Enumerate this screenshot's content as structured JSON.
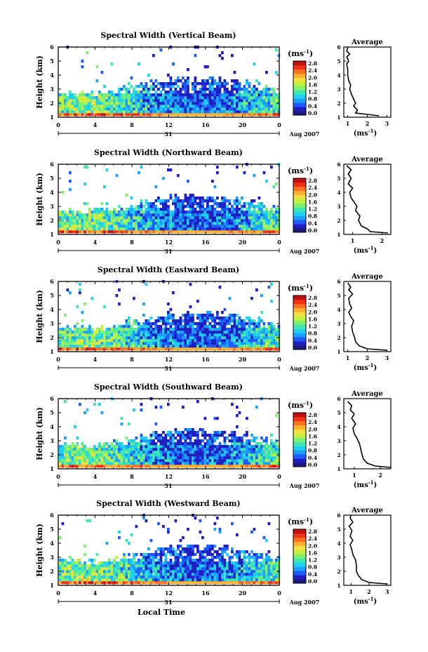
{
  "figure": {
    "xlabel": "Local Time",
    "date_label": "31",
    "month_year": "Aug 2007",
    "avg_title": "Average",
    "unit_label": "(ms",
    "unit_sup": "-1",
    "unit_close": ")",
    "ylabel": "Height (km)"
  },
  "palette": [
    "#1a1a80",
    "#2020c0",
    "#1e5cff",
    "#1aa0ff",
    "#20d0f0",
    "#40e8b0",
    "#80f070",
    "#c0f040",
    "#f0e040",
    "#ffb030",
    "#ff7020",
    "#f03018",
    "#c01010"
  ],
  "chart_data": [
    {
      "type": "heatmap",
      "title": "Spectral Width (Vertical Beam)",
      "x_ticks": [
        "0",
        "4",
        "8",
        "12",
        "16",
        "20",
        "0"
      ],
      "y_ticks": [
        "1",
        "2",
        "3",
        "4",
        "5",
        "6"
      ],
      "xlim": [
        0,
        24
      ],
      "ylim": [
        1,
        6
      ],
      "colorbar": {
        "ticks": [
          "0.0",
          "0.4",
          "0.8",
          "1.2",
          "1.6",
          "2.0",
          "2.4",
          "2.8"
        ],
        "range": [
          0,
          2.8
        ]
      },
      "profile": {
        "x_ticks": [
          "1",
          "2",
          "3"
        ],
        "xlim": [
          0.8,
          3.2
        ],
        "ylim": [
          1,
          6
        ],
        "points": [
          [
            2.6,
            1.1
          ],
          [
            2.0,
            1.2
          ],
          [
            1.4,
            1.3
          ],
          [
            1.5,
            1.5
          ],
          [
            1.3,
            1.8
          ],
          [
            1.4,
            2.0
          ],
          [
            1.3,
            2.3
          ],
          [
            1.2,
            2.6
          ],
          [
            1.1,
            3.0
          ],
          [
            1.15,
            3.3
          ],
          [
            1.05,
            3.6
          ],
          [
            1.0,
            4.0
          ],
          [
            1.0,
            4.4
          ],
          [
            0.95,
            4.8
          ],
          [
            1.05,
            5.0
          ],
          [
            0.95,
            5.3
          ],
          [
            1.1,
            5.5
          ],
          [
            0.95,
            5.7
          ],
          [
            1.0,
            6.0
          ]
        ]
      }
    },
    {
      "type": "heatmap",
      "title": "Spectral Width (Northward Beam)",
      "x_ticks": [
        "0",
        "4",
        "8",
        "12",
        "16",
        "20",
        "0"
      ],
      "y_ticks": [
        "1",
        "2",
        "3",
        "4",
        "5",
        "6"
      ],
      "xlim": [
        0,
        24
      ],
      "ylim": [
        1,
        6
      ],
      "colorbar": {
        "ticks": [
          "0.0",
          "0.4",
          "0.8",
          "1.2",
          "1.6",
          "2.0",
          "2.4",
          "2.8"
        ],
        "range": [
          0,
          2.8
        ]
      },
      "profile": {
        "x_ticks": [
          "1",
          "2"
        ],
        "xlim": [
          0.7,
          2.3
        ],
        "ylim": [
          1,
          6
        ],
        "points": [
          [
            2.2,
            1.1
          ],
          [
            1.6,
            1.2
          ],
          [
            1.5,
            1.4
          ],
          [
            1.3,
            1.6
          ],
          [
            1.2,
            2.0
          ],
          [
            1.25,
            2.3
          ],
          [
            1.1,
            2.7
          ],
          [
            1.15,
            3.0
          ],
          [
            1.05,
            3.3
          ],
          [
            0.95,
            3.6
          ],
          [
            0.9,
            4.0
          ],
          [
            1.0,
            4.3
          ],
          [
            0.85,
            4.6
          ],
          [
            0.95,
            5.0
          ],
          [
            0.85,
            5.3
          ],
          [
            0.95,
            5.6
          ],
          [
            0.8,
            5.9
          ]
        ]
      }
    },
    {
      "type": "heatmap",
      "title": "Spectral Width (Eastward Beam)",
      "x_ticks": [
        "0",
        "4",
        "8",
        "12",
        "16",
        "20",
        "0"
      ],
      "y_ticks": [
        "1",
        "2",
        "3",
        "4",
        "5",
        "6"
      ],
      "xlim": [
        0,
        24
      ],
      "ylim": [
        1,
        6
      ],
      "colorbar": {
        "ticks": [
          "0.0",
          "0.4",
          "0.8",
          "1.2",
          "1.6",
          "2.0",
          "2.4",
          "2.8"
        ],
        "range": [
          0,
          2.8
        ]
      },
      "profile": {
        "x_ticks": [
          "1",
          "2",
          "3"
        ],
        "xlim": [
          0.8,
          3.2
        ],
        "ylim": [
          1,
          6
        ],
        "points": [
          [
            3.0,
            1.1
          ],
          [
            2.0,
            1.2
          ],
          [
            1.6,
            1.4
          ],
          [
            1.4,
            1.7
          ],
          [
            1.35,
            2.0
          ],
          [
            1.25,
            2.4
          ],
          [
            1.2,
            2.8
          ],
          [
            1.3,
            3.2
          ],
          [
            1.15,
            3.5
          ],
          [
            1.05,
            3.8
          ],
          [
            1.2,
            4.1
          ],
          [
            1.1,
            4.4
          ],
          [
            1.05,
            4.8
          ],
          [
            1.25,
            5.1
          ],
          [
            1.05,
            5.4
          ],
          [
            1.15,
            5.6
          ],
          [
            1.0,
            5.9
          ]
        ]
      }
    },
    {
      "type": "heatmap",
      "title": "Spectral Width (Southward Beam)",
      "x_ticks": [
        "0",
        "4",
        "8",
        "12",
        "16",
        "20",
        "0"
      ],
      "y_ticks": [
        "1",
        "2",
        "3",
        "4",
        "5",
        "6"
      ],
      "xlim": [
        0,
        24
      ],
      "ylim": [
        1,
        6
      ],
      "colorbar": {
        "ticks": [
          "0.0",
          "0.4",
          "0.8",
          "1.2",
          "1.6",
          "2.0",
          "2.4",
          "2.8"
        ],
        "range": [
          0,
          2.8
        ]
      },
      "profile": {
        "x_ticks": [
          "1",
          "2"
        ],
        "xlim": [
          0.6,
          2.4
        ],
        "ylim": [
          1,
          6
        ],
        "points": [
          [
            2.4,
            1.1
          ],
          [
            1.8,
            1.2
          ],
          [
            1.5,
            1.4
          ],
          [
            1.35,
            1.7
          ],
          [
            1.3,
            2.0
          ],
          [
            1.25,
            2.4
          ],
          [
            1.2,
            2.8
          ],
          [
            1.1,
            3.2
          ],
          [
            1.0,
            3.5
          ],
          [
            0.95,
            3.9
          ],
          [
            1.05,
            4.2
          ],
          [
            0.9,
            4.6
          ],
          [
            1.0,
            4.9
          ],
          [
            0.85,
            5.2
          ],
          [
            0.9,
            5.5
          ],
          [
            0.75,
            5.8
          ]
        ]
      }
    },
    {
      "type": "heatmap",
      "title": "Spectral Width (Westward Beam)",
      "x_ticks": [
        "0",
        "4",
        "8",
        "12",
        "16",
        "20",
        "0"
      ],
      "y_ticks": [
        "1",
        "2",
        "3",
        "4",
        "5",
        "6"
      ],
      "xlim": [
        0,
        24
      ],
      "ylim": [
        1,
        6
      ],
      "colorbar": {
        "ticks": [
          "0.0",
          "0.4",
          "0.8",
          "1.2",
          "1.6",
          "2.0",
          "2.4",
          "2.8"
        ],
        "range": [
          0,
          2.8
        ]
      },
      "profile": {
        "x_ticks": [
          "1",
          "2",
          "3"
        ],
        "xlim": [
          0.6,
          3.2
        ],
        "ylim": [
          1,
          6
        ],
        "points": [
          [
            3.0,
            1.1
          ],
          [
            2.0,
            1.2
          ],
          [
            1.6,
            1.4
          ],
          [
            1.4,
            1.7
          ],
          [
            1.3,
            2.0
          ],
          [
            1.3,
            2.4
          ],
          [
            1.25,
            2.8
          ],
          [
            1.1,
            3.2
          ],
          [
            1.05,
            3.5
          ],
          [
            0.95,
            3.9
          ],
          [
            1.1,
            4.2
          ],
          [
            0.95,
            4.5
          ],
          [
            1.05,
            4.9
          ],
          [
            0.9,
            5.2
          ],
          [
            1.1,
            5.5
          ],
          [
            0.95,
            5.8
          ],
          [
            1.0,
            6.0
          ]
        ]
      }
    }
  ]
}
